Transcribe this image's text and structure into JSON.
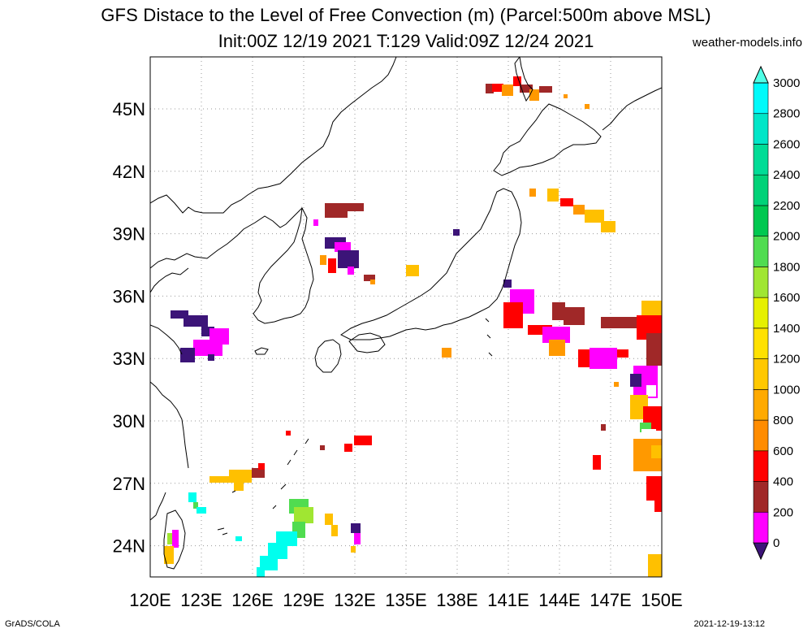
{
  "header": {
    "title": "GFS Distace to the Level of Free Convection (m) (Parcel:500m above MSL)",
    "subtitle": "Init:00Z 12/19 2021 T:129 Valid:09Z 12/24 2021",
    "site": "weather-models.info"
  },
  "footer": {
    "left": "GrADS/COLA",
    "right": "2021-12-19-13:12"
  },
  "map": {
    "lon_range": [
      120,
      150
    ],
    "lat_range": [
      22.5,
      47.5
    ],
    "lon_ticks": [
      "120E",
      "123E",
      "126E",
      "129E",
      "132E",
      "135E",
      "138E",
      "141E",
      "144E",
      "147E",
      "150E"
    ],
    "lat_ticks": [
      "24N",
      "27N",
      "30N",
      "33N",
      "36N",
      "39N",
      "42N",
      "45N"
    ],
    "lat_tick_values": [
      24,
      27,
      30,
      33,
      36,
      39,
      42,
      45
    ],
    "grid": "dotted"
  },
  "legend": {
    "labels": [
      "0",
      "200",
      "400",
      "600",
      "800",
      "1000",
      "1200",
      "1400",
      "1600",
      "1800",
      "2000",
      "2200",
      "2400",
      "2600",
      "2800",
      "3000"
    ],
    "colors": [
      "#3c1478",
      "#ff00ff",
      "#a02828",
      "#ff0000",
      "#ff8c00",
      "#ffaa00",
      "#ffc800",
      "#ffe100",
      "#e6f000",
      "#a0e632",
      "#50dc50",
      "#00c850",
      "#00d278",
      "#00dc96",
      "#00e6c8",
      "#00fafa",
      "#50ffe6"
    ]
  },
  "colors": {
    "purple": "#3c1478",
    "magenta": "#ff00ff",
    "brown": "#a02828",
    "red": "#ff0000",
    "orange": "#ff9900",
    "gold": "#ffc000",
    "green": "#50dc50",
    "cyan": "#00ffee"
  }
}
